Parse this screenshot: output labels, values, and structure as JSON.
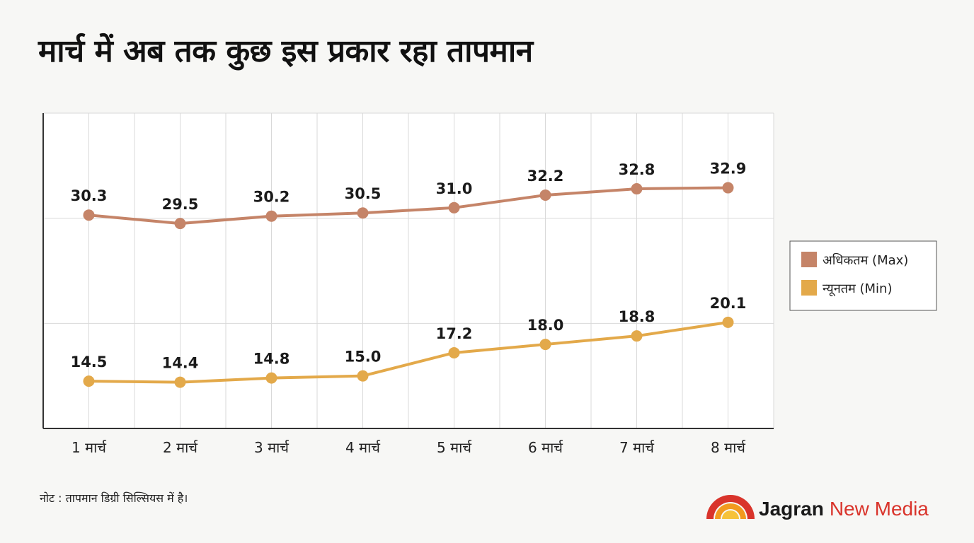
{
  "title": "मार्च में अब तक कुछ इस प्रकार रहा तापमान",
  "note": "नोट : तापमान डिग्री सिल्सियस में है।",
  "brand": {
    "name": "Jagran",
    "suffix": "New Media"
  },
  "colors": {
    "max": "#c58468",
    "min": "#e3a94a",
    "grid": "#d9d9d9",
    "axis": "#333333",
    "brand_red": "#d9342b",
    "brand_orange": "#f29a1f"
  },
  "chart_data": {
    "type": "line",
    "title": "मार्च में अब तक कुछ इस प्रकार रहा तापमान",
    "categories": [
      "1 मार्च",
      "2 मार्च",
      "3 मार्च",
      "4 मार्च",
      "5 मार्च",
      "6 मार्च",
      "7 मार्च",
      "8 मार्च"
    ],
    "series": [
      {
        "name": "अधिकतम (Max)",
        "values": [
          30.3,
          29.5,
          30.2,
          30.5,
          31.0,
          32.2,
          32.8,
          32.9
        ],
        "labels": [
          "30.3",
          "29.5",
          "30.2",
          "30.5",
          "31.0",
          "32.2",
          "32.8",
          "32.9"
        ]
      },
      {
        "name": "न्यूनतम (Min)",
        "values": [
          14.5,
          14.4,
          14.8,
          15.0,
          17.2,
          18.0,
          18.8,
          20.1
        ],
        "labels": [
          "14.5",
          "14.4",
          "14.8",
          "15.0",
          "17.2",
          "18.0",
          "18.8",
          "20.1"
        ]
      }
    ],
    "xlabel": "",
    "ylabel": "",
    "ylim": [
      10,
      40
    ],
    "grid": true,
    "legend": "right"
  }
}
